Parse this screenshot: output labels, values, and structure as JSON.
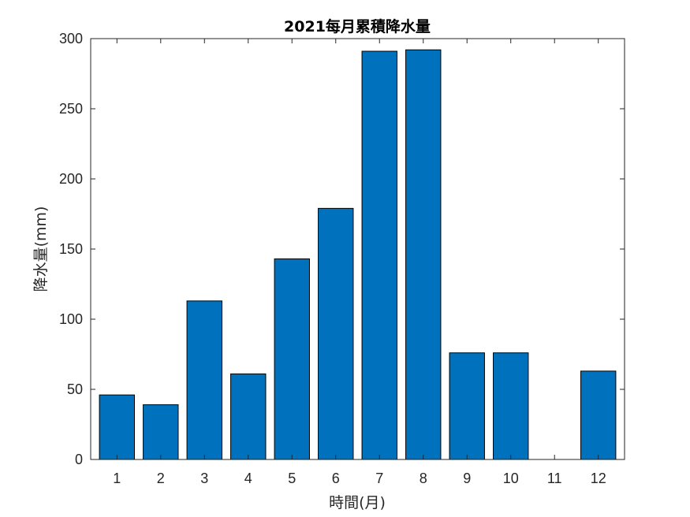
{
  "chart_data": {
    "type": "bar",
    "title": "2021每月累積降水量",
    "xlabel": "時間(月)",
    "ylabel": "降水量(mm)",
    "categories": [
      "1",
      "2",
      "3",
      "4",
      "5",
      "6",
      "7",
      "8",
      "9",
      "10",
      "11",
      "12"
    ],
    "values": [
      46,
      39,
      113,
      61,
      143,
      179,
      291,
      292,
      76,
      76,
      0,
      63
    ],
    "ylim": [
      0,
      300
    ],
    "yticks": [
      0,
      50,
      100,
      150,
      200,
      250,
      300
    ],
    "grid": false,
    "legend": "none",
    "colors": {
      "bar": "#0072BD",
      "bar_edge": "#000000",
      "axis": "#262626"
    }
  }
}
